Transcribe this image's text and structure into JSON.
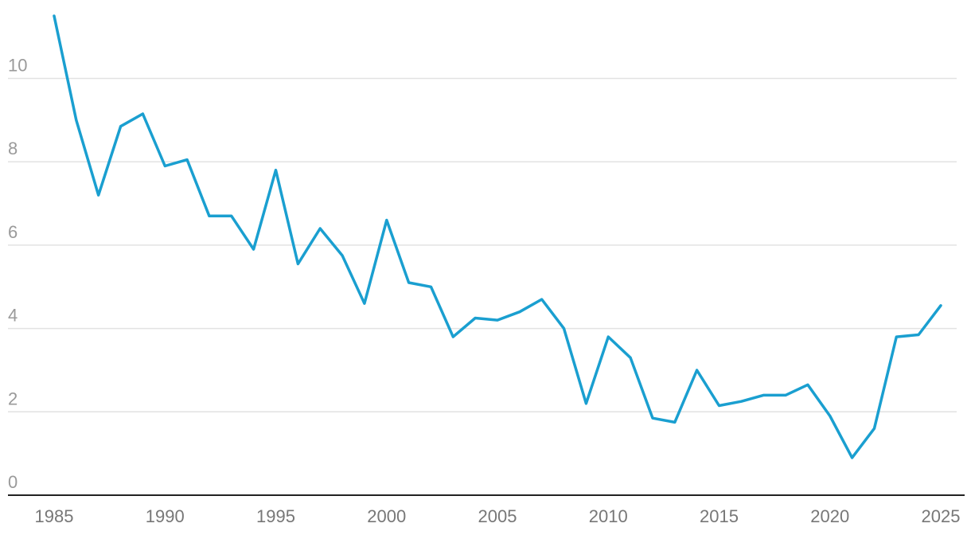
{
  "chart_data": {
    "type": "line",
    "title": "",
    "xlabel": "",
    "ylabel": "",
    "xlim": [
      1985,
      2025
    ],
    "ylim": [
      0,
      11.5
    ],
    "grid": true,
    "y_ticks": [
      0,
      2,
      4,
      6,
      8,
      10
    ],
    "y_tick_labels": [
      "0",
      "2",
      "4",
      "6",
      "8",
      "10"
    ],
    "x_ticks": [
      1985,
      1990,
      1995,
      2000,
      2005,
      2010,
      2015,
      2020,
      2025
    ],
    "x_tick_labels": [
      "1985",
      "1990",
      "1995",
      "2000",
      "2005",
      "2010",
      "2015",
      "2020",
      "2025"
    ],
    "line_color": "#1a9fd0",
    "series": [
      {
        "x": [
          1985,
          1986,
          1987,
          1988,
          1989,
          1990,
          1991,
          1992,
          1993,
          1994,
          1995,
          1996,
          1997,
          1998,
          1999,
          2000,
          2001,
          2002,
          2003,
          2004,
          2005,
          2006,
          2007,
          2008,
          2009,
          2010,
          2011,
          2012,
          2013,
          2014,
          2015,
          2016,
          2017,
          2018,
          2019,
          2020,
          2021,
          2022,
          2023,
          2024,
          2025
        ],
        "values": [
          11.5,
          9.0,
          7.2,
          8.85,
          9.15,
          7.9,
          8.05,
          6.7,
          6.7,
          5.9,
          7.8,
          5.55,
          6.4,
          5.75,
          4.6,
          6.6,
          5.1,
          5.0,
          3.8,
          4.25,
          4.2,
          4.4,
          4.7,
          4.0,
          2.2,
          3.8,
          3.3,
          1.85,
          1.75,
          3.0,
          2.15,
          2.25,
          2.4,
          2.4,
          2.65,
          1.9,
          0.9,
          1.6,
          3.8,
          3.85,
          4.55
        ]
      }
    ]
  }
}
